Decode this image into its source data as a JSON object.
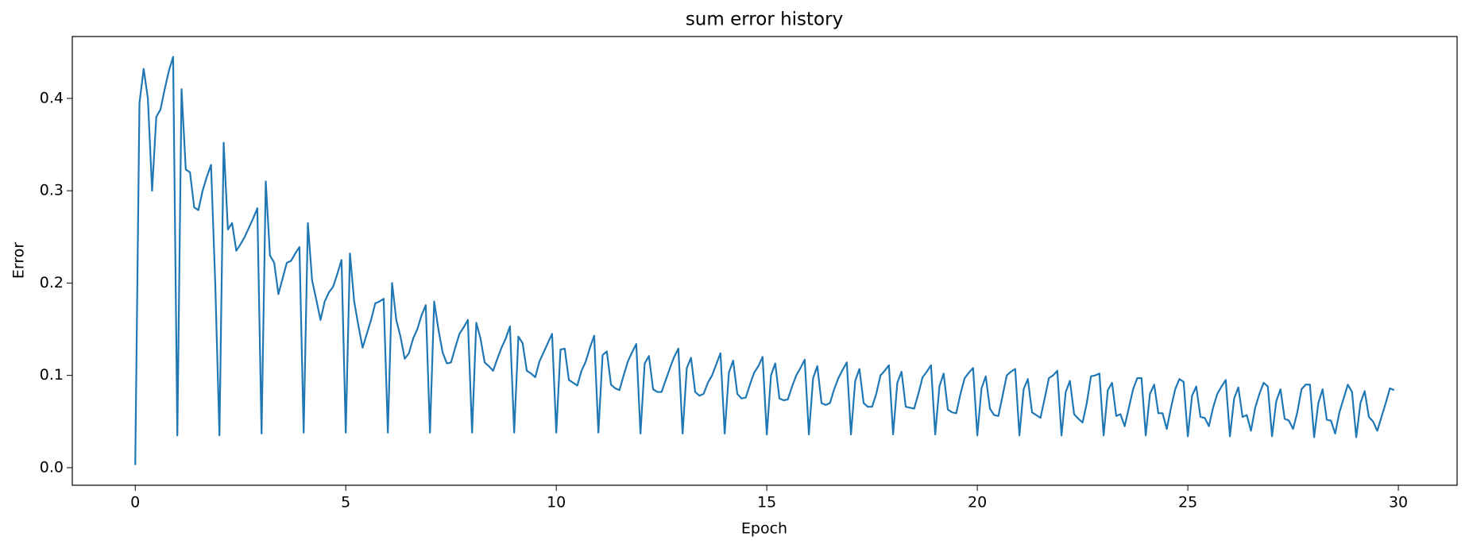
{
  "chart_data": {
    "type": "line",
    "title": "sum error history",
    "x_label": "Epoch",
    "y_label": "Error",
    "xlim": [
      -1.495,
      31.395
    ],
    "ylim": [
      -0.019,
      0.467
    ],
    "xticks": [
      0,
      5,
      10,
      15,
      20,
      25,
      30
    ],
    "yticks": [
      {
        "value": 0,
        "label": "0.0"
      },
      0.1,
      0.2,
      0.3,
      0.4
    ],
    "grid": false,
    "series": [
      {
        "color": "#1f77b4",
        "x": [
          0,
          0.1,
          0.2,
          0.3,
          0.4,
          0.5,
          0.6,
          0.7,
          0.8,
          0.9,
          1,
          1.1,
          1.2,
          1.3,
          1.4,
          1.5,
          1.6,
          1.7,
          1.8,
          1.9,
          2,
          2.1,
          2.2,
          2.3,
          2.4,
          2.5,
          2.6,
          2.7,
          2.8,
          2.9,
          3,
          3.1,
          3.2,
          3.3,
          3.4,
          3.5,
          3.6,
          3.7,
          3.8,
          3.9,
          4,
          4.1,
          4.2,
          4.3,
          4.4,
          4.5,
          4.6,
          4.7,
          4.8,
          4.9,
          5,
          5.1,
          5.2,
          5.3,
          5.4,
          5.5,
          5.6,
          5.7,
          5.8,
          5.9,
          6,
          6.1,
          6.2,
          6.3,
          6.4,
          6.5,
          6.6,
          6.7,
          6.8,
          6.9,
          7,
          7.1,
          7.2,
          7.3,
          7.4,
          7.5,
          7.6,
          7.7,
          7.8,
          7.9,
          8,
          8.1,
          8.2,
          8.3,
          8.4,
          8.5,
          8.6,
          8.7,
          8.8,
          8.9,
          9,
          9.1,
          9.2,
          9.3,
          9.4,
          9.5,
          9.6,
          9.7,
          9.8,
          9.9,
          10,
          10.1,
          10.2,
          10.3,
          10.4,
          10.5,
          10.6,
          10.7,
          10.8,
          10.9,
          11,
          11.1,
          11.2,
          11.3,
          11.4,
          11.5,
          11.6,
          11.7,
          11.8,
          11.9,
          12,
          12.1,
          12.2,
          12.3,
          12.4,
          12.5,
          12.6,
          12.7,
          12.8,
          12.9,
          13,
          13.1,
          13.2,
          13.3,
          13.4,
          13.5,
          13.6,
          13.7,
          13.8,
          13.9,
          14,
          14.1,
          14.2,
          14.3,
          14.4,
          14.5,
          14.6,
          14.7,
          14.8,
          14.9,
          15,
          15.1,
          15.2,
          15.3,
          15.4,
          15.5,
          15.6,
          15.7,
          15.8,
          15.9,
          16,
          16.1,
          16.2,
          16.3,
          16.4,
          16.5,
          16.6,
          16.7,
          16.8,
          16.9,
          17,
          17.1,
          17.2,
          17.3,
          17.4,
          17.5,
          17.6,
          17.7,
          17.8,
          17.9,
          18,
          18.1,
          18.2,
          18.3,
          18.4,
          18.5,
          18.6,
          18.7,
          18.8,
          18.9,
          19,
          19.1,
          19.2,
          19.3,
          19.4,
          19.5,
          19.6,
          19.7,
          19.8,
          19.9,
          20,
          20.1,
          20.2,
          20.3,
          20.4,
          20.5,
          20.6,
          20.7,
          20.8,
          20.9,
          21,
          21.1,
          21.2,
          21.3,
          21.4,
          21.5,
          21.6,
          21.7,
          21.8,
          21.9,
          22,
          22.1,
          22.2,
          22.3,
          22.4,
          22.5,
          22.6,
          22.7,
          22.8,
          22.9,
          23,
          23.1,
          23.2,
          23.3,
          23.4,
          23.5,
          23.6,
          23.7,
          23.8,
          23.9,
          24,
          24.1,
          24.2,
          24.3,
          24.4,
          24.5,
          24.6,
          24.7,
          24.8,
          24.9,
          25,
          25.1,
          25.2,
          25.3,
          25.4,
          25.5,
          25.6,
          25.7,
          25.8,
          25.9,
          26,
          26.1,
          26.2,
          26.3,
          26.4,
          26.5,
          26.6,
          26.7,
          26.8,
          26.9,
          27,
          27.1,
          27.2,
          27.3,
          27.4,
          27.5,
          27.6,
          27.7,
          27.8,
          27.9,
          28,
          28.1,
          28.2,
          28.3,
          28.4,
          28.5,
          28.6,
          28.7,
          28.8,
          28.9,
          29,
          29.1,
          29.2,
          29.3,
          29.4,
          29.5,
          29.6,
          29.7,
          29.8,
          29.9
        ],
        "values": [
          0.003,
          0.395,
          0.432,
          0.4,
          0.3,
          0.38,
          0.388,
          0.41,
          0.43,
          0.445,
          0.035,
          0.41,
          0.323,
          0.32,
          0.282,
          0.279,
          0.3,
          0.315,
          0.328,
          0.2,
          0.035,
          0.352,
          0.258,
          0.265,
          0.235,
          0.242,
          0.25,
          0.26,
          0.27,
          0.281,
          0.037,
          0.31,
          0.23,
          0.222,
          0.188,
          0.205,
          0.222,
          0.224,
          0.232,
          0.239,
          0.038,
          0.265,
          0.203,
          0.182,
          0.16,
          0.18,
          0.19,
          0.196,
          0.21,
          0.225,
          0.038,
          0.232,
          0.18,
          0.154,
          0.13,
          0.145,
          0.16,
          0.178,
          0.18,
          0.183,
          0.038,
          0.2,
          0.16,
          0.142,
          0.118,
          0.124,
          0.14,
          0.15,
          0.165,
          0.176,
          0.038,
          0.18,
          0.15,
          0.125,
          0.113,
          0.114,
          0.13,
          0.145,
          0.152,
          0.16,
          0.038,
          0.157,
          0.14,
          0.114,
          0.11,
          0.105,
          0.118,
          0.13,
          0.14,
          0.153,
          0.038,
          0.142,
          0.135,
          0.105,
          0.102,
          0.098,
          0.115,
          0.125,
          0.135,
          0.145,
          0.038,
          0.128,
          0.129,
          0.095,
          0.092,
          0.089,
          0.105,
          0.115,
          0.13,
          0.143,
          0.038,
          0.122,
          0.126,
          0.09,
          0.086,
          0.084,
          0.1,
          0.115,
          0.125,
          0.134,
          0.037,
          0.113,
          0.121,
          0.085,
          0.082,
          0.082,
          0.095,
          0.108,
          0.12,
          0.129,
          0.037,
          0.108,
          0.119,
          0.082,
          0.078,
          0.08,
          0.092,
          0.1,
          0.112,
          0.124,
          0.037,
          0.103,
          0.116,
          0.08,
          0.075,
          0.076,
          0.09,
          0.103,
          0.11,
          0.12,
          0.036,
          0.1,
          0.113,
          0.075,
          0.073,
          0.074,
          0.088,
          0.1,
          0.108,
          0.117,
          0.036,
          0.097,
          0.11,
          0.07,
          0.068,
          0.07,
          0.085,
          0.097,
          0.106,
          0.114,
          0.036,
          0.094,
          0.107,
          0.07,
          0.066,
          0.066,
          0.08,
          0.1,
          0.105,
          0.111,
          0.036,
          0.092,
          0.104,
          0.066,
          0.065,
          0.064,
          0.08,
          0.098,
          0.104,
          0.111,
          0.036,
          0.088,
          0.102,
          0.063,
          0.06,
          0.059,
          0.08,
          0.097,
          0.103,
          0.108,
          0.035,
          0.086,
          0.099,
          0.064,
          0.057,
          0.056,
          0.078,
          0.1,
          0.104,
          0.107,
          0.035,
          0.085,
          0.096,
          0.06,
          0.057,
          0.054,
          0.075,
          0.097,
          0.1,
          0.105,
          0.035,
          0.082,
          0.094,
          0.058,
          0.053,
          0.049,
          0.07,
          0.099,
          0.1,
          0.102,
          0.035,
          0.084,
          0.092,
          0.056,
          0.058,
          0.045,
          0.065,
          0.085,
          0.097,
          0.097,
          0.035,
          0.08,
          0.09,
          0.059,
          0.059,
          0.042,
          0.065,
          0.085,
          0.096,
          0.093,
          0.034,
          0.078,
          0.088,
          0.055,
          0.054,
          0.045,
          0.065,
          0.08,
          0.088,
          0.095,
          0.034,
          0.075,
          0.087,
          0.055,
          0.057,
          0.04,
          0.065,
          0.08,
          0.092,
          0.088,
          0.034,
          0.072,
          0.085,
          0.053,
          0.051,
          0.042,
          0.06,
          0.085,
          0.09,
          0.09,
          0.033,
          0.07,
          0.085,
          0.052,
          0.051,
          0.037,
          0.06,
          0.075,
          0.09,
          0.082,
          0.033,
          0.07,
          0.083,
          0.055,
          0.05,
          0.04,
          0.055,
          0.07,
          0.086,
          0.084
        ]
      }
    ]
  }
}
